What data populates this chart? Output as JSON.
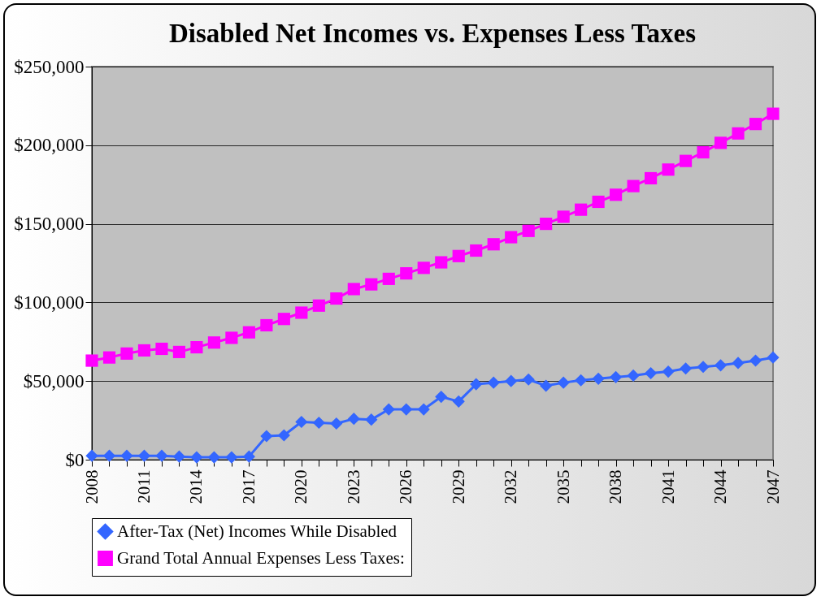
{
  "chart_data": {
    "type": "line",
    "title": "Disabled Net Incomes vs. Expenses Less Taxes",
    "categories": [
      "2008",
      null,
      null,
      "2011",
      null,
      null,
      "2014",
      null,
      null,
      "2017",
      null,
      null,
      "2020",
      null,
      null,
      "2023",
      null,
      null,
      "2026",
      null,
      null,
      "2029",
      null,
      null,
      "2032",
      null,
      null,
      "2035",
      null,
      null,
      "2038",
      null,
      null,
      "2041",
      null,
      null,
      "2044",
      null,
      null,
      "2047"
    ],
    "series": [
      {
        "name": "After-Tax (Net) Incomes While Disabled",
        "color": "#3366ff",
        "marker": "diamond",
        "values": [
          2500,
          2500,
          2500,
          2500,
          2500,
          2000,
          1500,
          1500,
          1500,
          2000,
          15000,
          15500,
          24000,
          23500,
          23000,
          26000,
          25500,
          32000,
          32000,
          32000,
          40000,
          37000,
          48000,
          49000,
          50000,
          51000,
          47000,
          49000,
          50500,
          51500,
          52500,
          53500,
          55000,
          56000,
          58000,
          59000,
          60000,
          61500,
          63000,
          65000
        ]
      },
      {
        "name": "Grand Total Annual Expenses Less Taxes:",
        "color": "#ff00ff",
        "marker": "square",
        "values": [
          63000,
          65000,
          67500,
          69500,
          70500,
          68500,
          71500,
          74500,
          77500,
          81000,
          85500,
          89500,
          93500,
          98000,
          102500,
          108500,
          111500,
          115000,
          118500,
          122000,
          125500,
          129500,
          133000,
          137000,
          141500,
          145500,
          150000,
          154500,
          159000,
          164000,
          168500,
          174000,
          179000,
          184500,
          190000,
          195500,
          201500,
          207500,
          213500,
          220000
        ]
      }
    ],
    "ylim": [
      0,
      250000
    ],
    "yticks": [
      {
        "value": 0,
        "label": "$0"
      },
      {
        "value": 50000,
        "label": "$50,000"
      },
      {
        "value": 100000,
        "label": "$100,000"
      },
      {
        "value": 150000,
        "label": "$150,000"
      },
      {
        "value": 200000,
        "label": "$200,000"
      },
      {
        "value": 250000,
        "label": "$250,000"
      }
    ],
    "grid": "y",
    "legend": "bottom"
  }
}
